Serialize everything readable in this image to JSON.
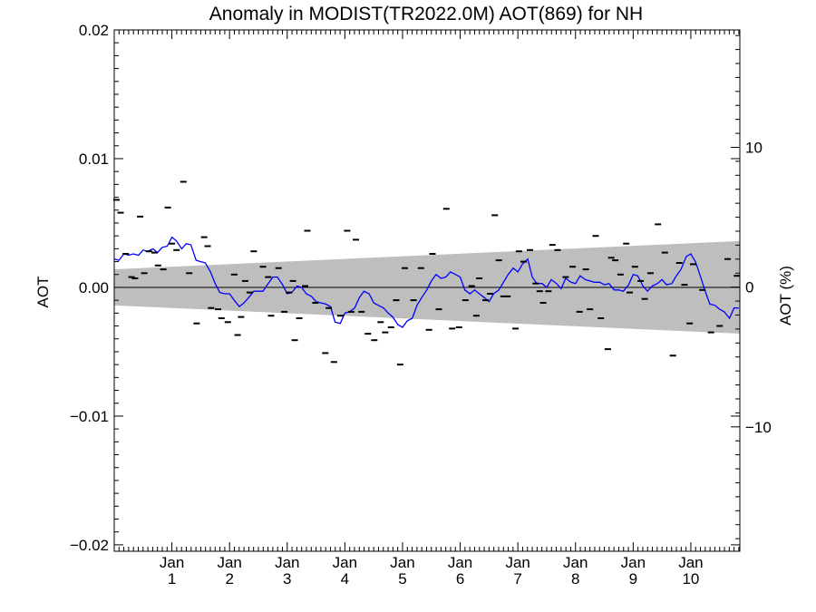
{
  "chart_data": {
    "type": "line",
    "title": "Anomaly in MODIST(TR2022.0M) AOT(869) for NH",
    "ylabel_left": "AOT",
    "ylabel_right": "AOT (%)",
    "ylim": [
      -0.0205,
      0.02
    ],
    "y_ticks": [
      {
        "label": "0.02",
        "value": 0.02
      },
      {
        "label": "0.01",
        "value": 0.01
      },
      {
        "label": "0.00",
        "value": 0.0
      },
      {
        "label": "−0.01",
        "value": -0.01
      },
      {
        "label": "−0.02",
        "value": -0.02
      }
    ],
    "right_axis": {
      "ylim": [
        -18.9,
        18.4
      ],
      "ticks": [
        {
          "label": "10",
          "value": 10
        },
        {
          "label": "0",
          "value": 0
        },
        {
          "label": "−10",
          "value": -10
        }
      ]
    },
    "x_range": [
      0.0,
      10.85
    ],
    "x_ticks": [
      {
        "month": "Jan",
        "year": "1",
        "value": 1
      },
      {
        "month": "Jan",
        "year": "2",
        "value": 2
      },
      {
        "month": "Jan",
        "year": "3",
        "value": 3
      },
      {
        "month": "Jan",
        "year": "4",
        "value": 4
      },
      {
        "month": "Jan",
        "year": "5",
        "value": 5
      },
      {
        "month": "Jan",
        "year": "6",
        "value": 6
      },
      {
        "month": "Jan",
        "year": "7",
        "value": 7
      },
      {
        "month": "Jan",
        "year": "8",
        "value": 8
      },
      {
        "month": "Jan",
        "year": "9",
        "value": 9
      },
      {
        "month": "Jan",
        "year": "10",
        "value": 10
      }
    ],
    "uncertainty_band": {
      "x": [
        0.0,
        10.85
      ],
      "upper": [
        0.0014,
        0.0036
      ],
      "lower": [
        -0.0014,
        -0.0036
      ],
      "color": "#bebebe"
    },
    "zero_line": 0.0,
    "series": [
      {
        "style": "line",
        "color": "#0000ff",
        "points": [
          [
            0.0,
            0.0022
          ],
          [
            0.08,
            0.0021
          ],
          [
            0.17,
            0.0026
          ],
          [
            0.25,
            0.0025
          ],
          [
            0.33,
            0.0026
          ],
          [
            0.42,
            0.0025
          ],
          [
            0.5,
            0.0029
          ],
          [
            0.58,
            0.0028
          ],
          [
            0.67,
            0.003
          ],
          [
            0.75,
            0.0027
          ],
          [
            0.83,
            0.0031
          ],
          [
            0.92,
            0.0032
          ],
          [
            1.0,
            0.0039
          ],
          [
            1.08,
            0.0036
          ],
          [
            1.17,
            0.003
          ],
          [
            1.25,
            0.0034
          ],
          [
            1.33,
            0.0033
          ],
          [
            1.42,
            0.0021
          ],
          [
            1.5,
            0.002
          ],
          [
            1.58,
            0.0019
          ],
          [
            1.67,
            0.0012
          ],
          [
            1.75,
            0.0003
          ],
          [
            1.83,
            -0.0004
          ],
          [
            1.92,
            -0.0005
          ],
          [
            2.0,
            -0.0005
          ],
          [
            2.08,
            -0.001
          ],
          [
            2.17,
            -0.0015
          ],
          [
            2.25,
            -0.0012
          ],
          [
            2.33,
            -0.0008
          ],
          [
            2.42,
            -0.0003
          ],
          [
            2.5,
            -0.0003
          ],
          [
            2.58,
            -0.0003
          ],
          [
            2.67,
            0.0003
          ],
          [
            2.75,
            0.0008
          ],
          [
            2.83,
            0.0008
          ],
          [
            2.92,
            0.0002
          ],
          [
            3.0,
            -0.0005
          ],
          [
            3.08,
            -0.0004
          ],
          [
            3.17,
            0.0001
          ],
          [
            3.25,
            0.0
          ],
          [
            3.33,
            -0.0005
          ],
          [
            3.42,
            -0.0007
          ],
          [
            3.5,
            -0.0011
          ],
          [
            3.58,
            -0.0012
          ],
          [
            3.67,
            -0.0013
          ],
          [
            3.75,
            -0.0015
          ],
          [
            3.83,
            -0.0027
          ],
          [
            3.92,
            -0.0028
          ],
          [
            4.0,
            -0.002
          ],
          [
            4.08,
            -0.0019
          ],
          [
            4.17,
            -0.0016
          ],
          [
            4.25,
            -0.0008
          ],
          [
            4.33,
            -0.0003
          ],
          [
            4.42,
            -0.0005
          ],
          [
            4.5,
            -0.0012
          ],
          [
            4.58,
            -0.0014
          ],
          [
            4.67,
            -0.0016
          ],
          [
            4.75,
            -0.002
          ],
          [
            4.83,
            -0.0023
          ],
          [
            4.92,
            -0.0029
          ],
          [
            5.0,
            -0.0031
          ],
          [
            5.08,
            -0.0026
          ],
          [
            5.17,
            -0.0024
          ],
          [
            5.25,
            -0.0014
          ],
          [
            5.33,
            -0.0008
          ],
          [
            5.42,
            -0.0002
          ],
          [
            5.5,
            0.0005
          ],
          [
            5.58,
            0.001
          ],
          [
            5.67,
            0.0007
          ],
          [
            5.75,
            0.0008
          ],
          [
            5.83,
            0.0012
          ],
          [
            5.92,
            0.001
          ],
          [
            6.0,
            0.0008
          ],
          [
            6.08,
            -0.0002
          ],
          [
            6.17,
            -0.0005
          ],
          [
            6.25,
            -0.0002
          ],
          [
            6.33,
            -0.0005
          ],
          [
            6.42,
            -0.0008
          ],
          [
            6.5,
            -0.0011
          ],
          [
            6.58,
            -0.0005
          ],
          [
            6.67,
            -0.0002
          ],
          [
            6.75,
            0.0004
          ],
          [
            6.83,
            0.001
          ],
          [
            6.92,
            0.0015
          ],
          [
            7.0,
            0.0012
          ],
          [
            7.08,
            0.0018
          ],
          [
            7.17,
            0.0022
          ],
          [
            7.25,
            0.0008
          ],
          [
            7.33,
            0.0003
          ],
          [
            7.42,
            0.0003
          ],
          [
            7.5,
            0.0
          ],
          [
            7.58,
            0.0006
          ],
          [
            7.67,
            0.0003
          ],
          [
            7.75,
            -0.0001
          ],
          [
            7.83,
            0.0007
          ],
          [
            7.92,
            0.0004
          ],
          [
            8.0,
            0.0003
          ],
          [
            8.08,
            0.0009
          ],
          [
            8.17,
            0.0006
          ],
          [
            8.25,
            0.0005
          ],
          [
            8.33,
            0.0004
          ],
          [
            8.42,
            0.0004
          ],
          [
            8.5,
            0.0002
          ],
          [
            8.58,
            0.0003
          ],
          [
            8.67,
            -0.0002
          ],
          [
            8.75,
            -0.0002
          ],
          [
            8.83,
            -0.0003
          ],
          [
            8.92,
            0.0002
          ],
          [
            9.0,
            0.001
          ],
          [
            9.08,
            0.0009
          ],
          [
            9.17,
            0.0001
          ],
          [
            9.25,
            -0.0003
          ],
          [
            9.33,
            0.0001
          ],
          [
            9.42,
            0.0003
          ],
          [
            9.5,
            0.0006
          ],
          [
            9.58,
            0.0002
          ],
          [
            9.67,
            0.0003
          ],
          [
            9.75,
            0.0009
          ],
          [
            9.83,
            0.0014
          ],
          [
            9.92,
            0.0024
          ],
          [
            10.0,
            0.0026
          ],
          [
            10.08,
            0.002
          ],
          [
            10.17,
            0.0008
          ],
          [
            10.25,
            -0.0003
          ],
          [
            10.33,
            -0.0013
          ],
          [
            10.42,
            -0.0014
          ],
          [
            10.5,
            -0.0017
          ],
          [
            10.58,
            -0.0019
          ],
          [
            10.67,
            -0.0024
          ],
          [
            10.75,
            -0.0016
          ],
          [
            10.83,
            -0.0016
          ]
        ]
      },
      {
        "style": "dash-markers",
        "color": "#000000",
        "points": [
          [
            0.04,
            0.0068
          ],
          [
            0.11,
            0.0058
          ],
          [
            0.2,
            0.0026
          ],
          [
            0.3,
            0.0008
          ],
          [
            0.36,
            0.0007
          ],
          [
            0.45,
            0.0055
          ],
          [
            0.52,
            0.0011
          ],
          [
            0.6,
            0.0028
          ],
          [
            0.7,
            0.0027
          ],
          [
            0.76,
            0.0017
          ],
          [
            0.85,
            0.0014
          ],
          [
            0.93,
            0.0062
          ],
          [
            1.0,
            0.0034
          ],
          [
            1.08,
            0.0029
          ],
          [
            1.2,
            0.0082
          ],
          [
            1.3,
            0.0011
          ],
          [
            1.43,
            -0.0028
          ],
          [
            1.56,
            0.0039
          ],
          [
            1.62,
            0.0032
          ],
          [
            1.68,
            -0.0016
          ],
          [
            1.8,
            -0.0017
          ],
          [
            1.86,
            -0.0024
          ],
          [
            1.97,
            -0.0027
          ],
          [
            2.08,
            0.001
          ],
          [
            2.14,
            -0.0037
          ],
          [
            2.2,
            -0.0023
          ],
          [
            2.27,
            0.0005
          ],
          [
            2.35,
            -0.0004
          ],
          [
            2.42,
            0.0028
          ],
          [
            2.58,
            0.0016
          ],
          [
            2.67,
            0.0008
          ],
          [
            2.72,
            -0.0022
          ],
          [
            2.85,
            0.0015
          ],
          [
            2.95,
            -0.0019
          ],
          [
            3.03,
            -0.0004
          ],
          [
            3.1,
            0.0005
          ],
          [
            3.13,
            -0.0041
          ],
          [
            3.21,
            -0.0024
          ],
          [
            3.31,
            0.0001
          ],
          [
            3.35,
            0.0044
          ],
          [
            3.49,
            -0.0012
          ],
          [
            3.66,
            -0.0051
          ],
          [
            3.72,
            -0.0016
          ],
          [
            3.81,
            -0.0058
          ],
          [
            3.92,
            -0.0022
          ],
          [
            4.04,
            0.0044
          ],
          [
            4.11,
            -0.0019
          ],
          [
            4.19,
            0.0037
          ],
          [
            4.29,
            -0.0019
          ],
          [
            4.4,
            -0.0036
          ],
          [
            4.51,
            -0.0041
          ],
          [
            4.62,
            -0.0027
          ],
          [
            4.7,
            -0.0035
          ],
          [
            4.8,
            -0.0031
          ],
          [
            4.89,
            -0.001
          ],
          [
            4.96,
            -0.006
          ],
          [
            5.04,
            0.0015
          ],
          [
            5.19,
            -0.001
          ],
          [
            5.32,
            0.0015
          ],
          [
            5.46,
            -0.0033
          ],
          [
            5.52,
            0.0026
          ],
          [
            5.63,
            -0.0017
          ],
          [
            5.76,
            0.0061
          ],
          [
            5.86,
            -0.0032
          ],
          [
            5.98,
            -0.0031
          ],
          [
            6.09,
            -0.001
          ],
          [
            6.2,
            0.0001
          ],
          [
            6.28,
            -0.0022
          ],
          [
            6.33,
            0.0007
          ],
          [
            6.44,
            -0.001
          ],
          [
            6.52,
            -0.0005
          ],
          [
            6.6,
            0.0056
          ],
          [
            6.67,
            0.0021
          ],
          [
            6.75,
            -0.0007
          ],
          [
            6.82,
            -0.0007
          ],
          [
            6.96,
            -0.0032
          ],
          [
            7.02,
            0.0028
          ],
          [
            7.1,
            0.002
          ],
          [
            7.21,
            0.0029
          ],
          [
            7.31,
            0.0003
          ],
          [
            7.38,
            -0.0003
          ],
          [
            7.44,
            -0.0012
          ],
          [
            7.53,
            -0.0003
          ],
          [
            7.6,
            0.0033
          ],
          [
            7.69,
            0.0029
          ],
          [
            7.83,
            0.0008
          ],
          [
            7.95,
            0.0016
          ],
          [
            8.07,
            -0.0019
          ],
          [
            8.18,
            0.0014
          ],
          [
            8.25,
            -0.0017
          ],
          [
            8.35,
            0.004
          ],
          [
            8.44,
            -0.0024
          ],
          [
            8.56,
            -0.0048
          ],
          [
            8.62,
            0.0023
          ],
          [
            8.69,
            0.0021
          ],
          [
            8.78,
            0.001
          ],
          [
            8.88,
            0.0034
          ],
          [
            8.94,
            -0.0004
          ],
          [
            9.03,
            0.0016
          ],
          [
            9.13,
            0.0005
          ],
          [
            9.2,
            -0.0009
          ],
          [
            9.3,
            0.0011
          ],
          [
            9.43,
            0.0049
          ],
          [
            9.55,
            0.0027
          ],
          [
            9.69,
            -0.0053
          ],
          [
            9.8,
            0.0019
          ],
          [
            9.89,
            0.0002
          ],
          [
            9.98,
            -0.0028
          ],
          [
            10.04,
            0.0018
          ],
          [
            10.2,
            -0.0002
          ],
          [
            10.35,
            -0.0035
          ],
          [
            10.5,
            -0.003
          ],
          [
            10.64,
            0.0022
          ],
          [
            10.8,
            0.0009
          ]
        ]
      }
    ]
  }
}
